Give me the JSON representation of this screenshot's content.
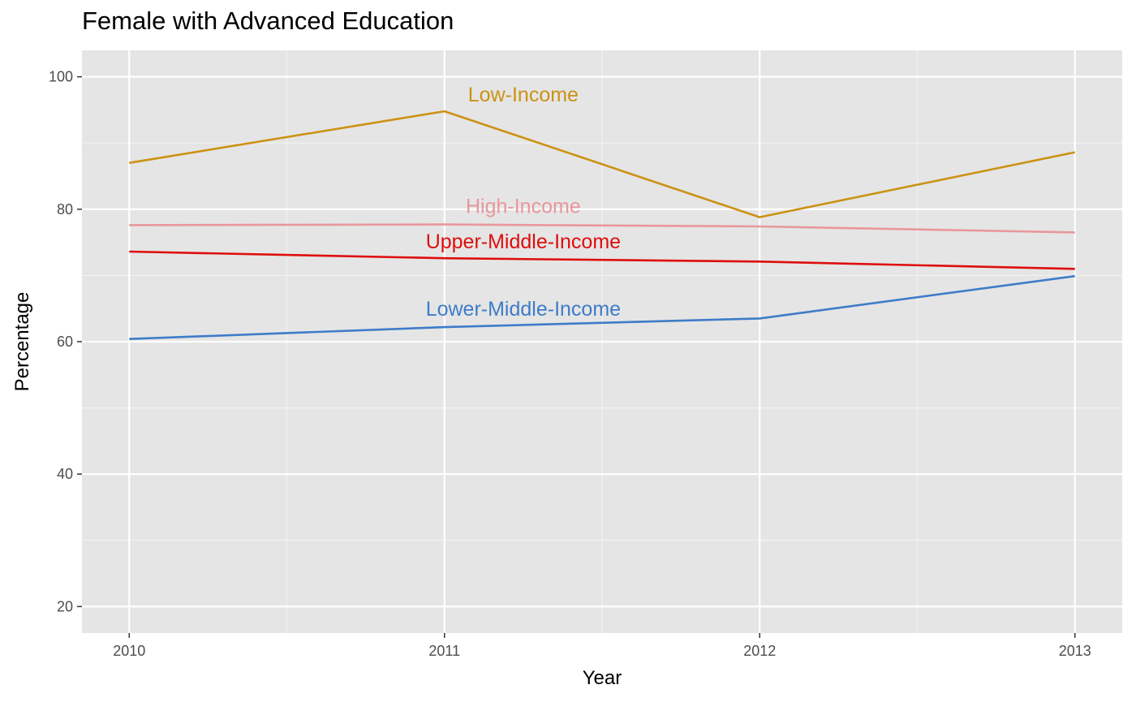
{
  "chart_data": {
    "type": "line",
    "title": "Female with Advanced Education",
    "xlabel": "Year",
    "ylabel": "Percentage",
    "x": [
      2010,
      2011,
      2012,
      2013
    ],
    "x_ticks": [
      "2010",
      "2011",
      "2012",
      "2013"
    ],
    "xlim": [
      2009.85,
      2013.15
    ],
    "ylim": [
      16,
      104
    ],
    "y_ticks": [
      20,
      40,
      60,
      80,
      100
    ],
    "y_tick_labels": [
      "20",
      "40",
      "60",
      "80",
      "100"
    ],
    "grid": true,
    "legend": "none",
    "series": [
      {
        "name": "Low-Income",
        "color": "#CC9214",
        "values": [
          87.0,
          94.8,
          78.8,
          88.6
        ],
        "label_x": 2011.25,
        "label_y": 97.4
      },
      {
        "name": "High-Income",
        "color": "#E8979C",
        "values": [
          77.6,
          77.7,
          77.4,
          76.5
        ],
        "label_x": 2011.25,
        "label_y": 80.5
      },
      {
        "name": "Upper-Middle-Income",
        "color": "#DF0D0D",
        "values": [
          73.6,
          72.6,
          72.1,
          71.0
        ],
        "label_x": 2011.25,
        "label_y": 75.2
      },
      {
        "name": "Lower-Middle-Income",
        "color": "#3E7CC8",
        "values": [
          60.4,
          62.2,
          63.5,
          69.9
        ],
        "label_x": 2011.25,
        "label_y": 65.0
      }
    ]
  }
}
